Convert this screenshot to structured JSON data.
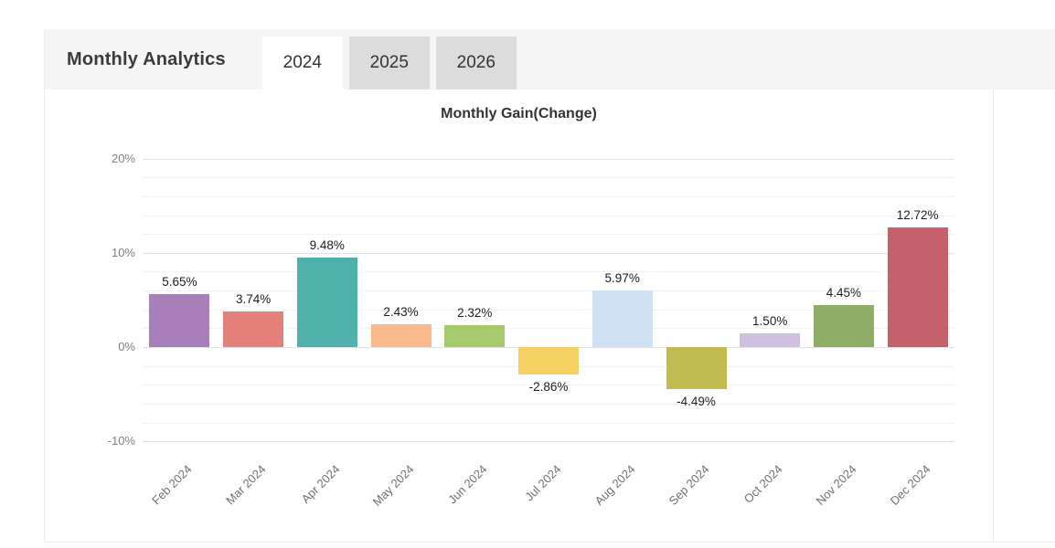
{
  "panel": {
    "title": "Monthly Analytics",
    "tabs": [
      {
        "label": "2024",
        "active": true
      },
      {
        "label": "2025",
        "active": false
      },
      {
        "label": "2026",
        "active": false
      }
    ]
  },
  "chart_data": {
    "type": "bar",
    "title": "Monthly Gain(Change)",
    "categories": [
      "Feb 2024",
      "Mar 2024",
      "Apr 2024",
      "May 2024",
      "Jun 2024",
      "Jul 2024",
      "Aug 2024",
      "Sep 2024",
      "Oct 2024",
      "Nov 2024",
      "Dec 2024"
    ],
    "values": [
      5.65,
      3.74,
      9.48,
      2.43,
      2.32,
      -2.86,
      5.97,
      -4.49,
      1.5,
      4.45,
      12.72
    ],
    "value_labels": [
      "5.65%",
      "3.74%",
      "9.48%",
      "2.43%",
      "2.32%",
      "-2.86%",
      "5.97%",
      "-4.49%",
      "1.50%",
      "4.45%",
      "12.72%"
    ],
    "colors": [
      "#a97fba",
      "#e4807a",
      "#4fb0ac",
      "#f9b98c",
      "#a6ca6b",
      "#f4d062",
      "#cfe2f6",
      "#c1bb50",
      "#cfc0e2",
      "#90ad68",
      "#c4616a"
    ],
    "xlabel": "",
    "ylabel": "",
    "ylim": [
      -12,
      22
    ],
    "grid": "on",
    "legend": "none",
    "y_axis": {
      "major_ticks": [
        {
          "value": 20,
          "label": "20%"
        },
        {
          "value": 10,
          "label": "10%"
        },
        {
          "value": 0,
          "label": "0%"
        },
        {
          "value": -10,
          "label": "-10%"
        }
      ],
      "minor_step": 2,
      "minor_range": [
        -10,
        20
      ]
    }
  }
}
